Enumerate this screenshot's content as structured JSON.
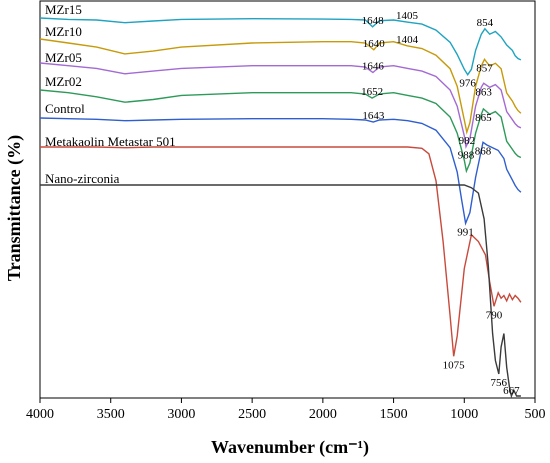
{
  "chart_data": {
    "type": "line",
    "xlabel": "Wavenumber (cm⁻¹)",
    "ylabel": "Transmittance (%)",
    "xlim": [
      4000,
      500
    ],
    "xreversed": true,
    "x_ticks": [
      "4000",
      "3500",
      "3000",
      "2500",
      "2000",
      "1500",
      "1000",
      "500"
    ],
    "y_ticks_shown": false,
    "grid": false,
    "legend": "none (series labelled inline above each trace)",
    "series": [
      {
        "name": "MZr15",
        "color": "#1fa3c0",
        "points": [
          [
            4000,
            0.0
          ],
          [
            3800,
            -1.0
          ],
          [
            3600,
            -1.5
          ],
          [
            3400,
            -3.5
          ],
          [
            3200,
            -2.2
          ],
          [
            3000,
            -1.0
          ],
          [
            2500,
            -0.5
          ],
          [
            2000,
            -0.8
          ],
          [
            1800,
            -1.0
          ],
          [
            1700,
            -1.5
          ],
          [
            1648,
            -6.5
          ],
          [
            1600,
            -2.0
          ],
          [
            1500,
            -1.5
          ],
          [
            1405,
            -3.0
          ],
          [
            1300,
            -4.5
          ],
          [
            1200,
            -9.0
          ],
          [
            1100,
            -18.0
          ],
          [
            1050,
            -27.0
          ],
          [
            1000,
            -38.0
          ],
          [
            976,
            -42.0
          ],
          [
            950,
            -38.0
          ],
          [
            920,
            -24.0
          ],
          [
            880,
            -12.0
          ],
          [
            854,
            -8.0
          ],
          [
            820,
            -12.0
          ],
          [
            780,
            -10.0
          ],
          [
            740,
            -14.0
          ],
          [
            700,
            -20.0
          ],
          [
            660,
            -24.0
          ],
          [
            640,
            -28.0
          ],
          [
            620,
            -30.0
          ],
          [
            600,
            -31.0
          ]
        ],
        "peaks": [
          {
            "label": "1648",
            "x": 1648
          },
          {
            "label": "1405",
            "x": 1405
          },
          {
            "label": "976",
            "x": 976
          },
          {
            "label": "854",
            "x": 854
          }
        ]
      },
      {
        "name": "MZr10",
        "color": "#c79a0a",
        "points": [
          [
            4000,
            0.0
          ],
          [
            3800,
            -3.0
          ],
          [
            3600,
            -6.0
          ],
          [
            3400,
            -11.0
          ],
          [
            3200,
            -9.0
          ],
          [
            3000,
            -6.0
          ],
          [
            2500,
            -3.0
          ],
          [
            2000,
            -2.0
          ],
          [
            1800,
            -2.0
          ],
          [
            1700,
            -3.0
          ],
          [
            1640,
            -8.0
          ],
          [
            1600,
            -3.0
          ],
          [
            1500,
            -2.0
          ],
          [
            1404,
            -5.0
          ],
          [
            1300,
            -7.0
          ],
          [
            1200,
            -12.0
          ],
          [
            1100,
            -22.0
          ],
          [
            1050,
            -35.0
          ],
          [
            1000,
            -60.0
          ],
          [
            982,
            -69.0
          ],
          [
            960,
            -62.0
          ],
          [
            920,
            -35.0
          ],
          [
            880,
            -20.0
          ],
          [
            857,
            -15.0
          ],
          [
            820,
            -20.0
          ],
          [
            780,
            -18.0
          ],
          [
            740,
            -22.0
          ],
          [
            700,
            -40.0
          ],
          [
            660,
            -46.0
          ],
          [
            640,
            -50.0
          ],
          [
            620,
            -53.0
          ],
          [
            600,
            -55.0
          ]
        ],
        "peaks": [
          {
            "label": "1640",
            "x": 1640
          },
          {
            "label": "1404",
            "x": 1404
          },
          {
            "label": "982",
            "x": 982
          },
          {
            "label": "857",
            "x": 857
          }
        ]
      },
      {
        "name": "MZr05",
        "color": "#a36ad4",
        "points": [
          [
            4000,
            0.0
          ],
          [
            3800,
            -2.0
          ],
          [
            3600,
            -4.0
          ],
          [
            3400,
            -8.0
          ],
          [
            3200,
            -6.0
          ],
          [
            3000,
            -4.0
          ],
          [
            2500,
            -2.0
          ],
          [
            2000,
            -2.0
          ],
          [
            1800,
            -2.0
          ],
          [
            1700,
            -3.0
          ],
          [
            1646,
            -7.0
          ],
          [
            1600,
            -3.0
          ],
          [
            1500,
            -2.0
          ],
          [
            1400,
            -4.0
          ],
          [
            1300,
            -6.0
          ],
          [
            1200,
            -10.0
          ],
          [
            1100,
            -20.0
          ],
          [
            1050,
            -32.0
          ],
          [
            1000,
            -54.0
          ],
          [
            988,
            -62.0
          ],
          [
            960,
            -56.0
          ],
          [
            920,
            -32.0
          ],
          [
            880,
            -18.0
          ],
          [
            863,
            -15.0
          ],
          [
            820,
            -18.0
          ],
          [
            780,
            -16.0
          ],
          [
            740,
            -20.0
          ],
          [
            700,
            -36.0
          ],
          [
            660,
            -42.0
          ],
          [
            640,
            -45.0
          ],
          [
            620,
            -47.0
          ],
          [
            600,
            -48.0
          ]
        ],
        "peaks": [
          {
            "label": "1646",
            "x": 1646
          },
          {
            "label": "988",
            "x": 988
          },
          {
            "label": "863",
            "x": 863
          }
        ]
      },
      {
        "name": "MZr02",
        "color": "#2e9a5a",
        "points": [
          [
            4000,
            0.0
          ],
          [
            3800,
            -2.0
          ],
          [
            3600,
            -5.0
          ],
          [
            3400,
            -9.0
          ],
          [
            3200,
            -7.0
          ],
          [
            3000,
            -4.0
          ],
          [
            2500,
            -2.0
          ],
          [
            2000,
            -2.0
          ],
          [
            1800,
            -2.0
          ],
          [
            1700,
            -3.0
          ],
          [
            1652,
            -6.0
          ],
          [
            1600,
            -3.0
          ],
          [
            1500,
            -2.0
          ],
          [
            1400,
            -4.0
          ],
          [
            1300,
            -6.0
          ],
          [
            1200,
            -10.0
          ],
          [
            1100,
            -20.0
          ],
          [
            1050,
            -32.0
          ],
          [
            1000,
            -52.0
          ],
          [
            985,
            -60.0
          ],
          [
            960,
            -54.0
          ],
          [
            920,
            -32.0
          ],
          [
            880,
            -18.0
          ],
          [
            865,
            -14.0
          ],
          [
            820,
            -18.0
          ],
          [
            780,
            -16.0
          ],
          [
            740,
            -20.0
          ],
          [
            700,
            -38.0
          ],
          [
            660,
            -44.0
          ],
          [
            640,
            -47.0
          ],
          [
            620,
            -49.0
          ],
          [
            600,
            -50.0
          ]
        ],
        "peaks": [
          {
            "label": "1652",
            "x": 1652
          },
          {
            "label": "865",
            "x": 865
          }
        ]
      },
      {
        "name": "Control",
        "color": "#2f5fcf",
        "points": [
          [
            4000,
            0.0
          ],
          [
            3800,
            -0.5
          ],
          [
            3600,
            -1.0
          ],
          [
            3400,
            -2.0
          ],
          [
            3200,
            -1.5
          ],
          [
            3000,
            -1.0
          ],
          [
            2500,
            -0.5
          ],
          [
            2000,
            -0.5
          ],
          [
            1800,
            -1.0
          ],
          [
            1700,
            -1.5
          ],
          [
            1643,
            -3.0
          ],
          [
            1600,
            -1.5
          ],
          [
            1500,
            -1.0
          ],
          [
            1400,
            -2.0
          ],
          [
            1300,
            -4.0
          ],
          [
            1200,
            -9.0
          ],
          [
            1100,
            -22.0
          ],
          [
            1050,
            -40.0
          ],
          [
            1020,
            -60.0
          ],
          [
            991,
            -78.0
          ],
          [
            960,
            -70.0
          ],
          [
            920,
            -44.0
          ],
          [
            880,
            -24.0
          ],
          [
            868,
            -18.0
          ],
          [
            840,
            -20.0
          ],
          [
            800,
            -22.0
          ],
          [
            760,
            -24.0
          ],
          [
            720,
            -30.0
          ],
          [
            700,
            -38.0
          ],
          [
            660,
            -46.0
          ],
          [
            640,
            -50.0
          ],
          [
            620,
            -53.0
          ],
          [
            600,
            -55.0
          ]
        ],
        "peaks": [
          {
            "label": "1643",
            "x": 1643
          },
          {
            "label": "991",
            "x": 991
          },
          {
            "label": "868",
            "x": 868
          }
        ]
      },
      {
        "name": "Metakaolin Metastar 501",
        "color": "#c84a3c",
        "points": [
          [
            4000,
            0.0
          ],
          [
            3800,
            0.0
          ],
          [
            3600,
            0.0
          ],
          [
            3400,
            -0.5
          ],
          [
            3200,
            0.0
          ],
          [
            3000,
            0.0
          ],
          [
            2500,
            0.0
          ],
          [
            2000,
            0.0
          ],
          [
            1800,
            0.0
          ],
          [
            1500,
            0.0
          ],
          [
            1400,
            0.0
          ],
          [
            1300,
            -1.0
          ],
          [
            1250,
            -5.0
          ],
          [
            1200,
            -25.0
          ],
          [
            1150,
            -70.0
          ],
          [
            1100,
            -125.0
          ],
          [
            1075,
            -155.0
          ],
          [
            1050,
            -140.0
          ],
          [
            1000,
            -90.0
          ],
          [
            950,
            -65.0
          ],
          [
            900,
            -70.0
          ],
          [
            850,
            -80.0
          ],
          [
            820,
            -100.0
          ],
          [
            800,
            -112.0
          ],
          [
            790,
            -118.0
          ],
          [
            760,
            -108.0
          ],
          [
            740,
            -112.0
          ],
          [
            720,
            -110.0
          ],
          [
            700,
            -114.0
          ],
          [
            680,
            -109.0
          ],
          [
            660,
            -113.0
          ],
          [
            640,
            -110.0
          ],
          [
            620,
            -112.0
          ],
          [
            600,
            -115.0
          ]
        ],
        "peaks": [
          {
            "label": "1075",
            "x": 1075
          },
          {
            "label": "790",
            "x": 790
          }
        ]
      },
      {
        "name": "Nano-zirconia",
        "color": "#3a3a3a",
        "points": [
          [
            4000,
            0.0
          ],
          [
            3800,
            0.0
          ],
          [
            3600,
            0.0
          ],
          [
            3400,
            0.0
          ],
          [
            3200,
            0.0
          ],
          [
            3000,
            0.0
          ],
          [
            2500,
            0.0
          ],
          [
            2000,
            0.0
          ],
          [
            1800,
            0.0
          ],
          [
            1500,
            0.0
          ],
          [
            1300,
            0.0
          ],
          [
            1200,
            0.0
          ],
          [
            1100,
            0.0
          ],
          [
            1000,
            0.0
          ],
          [
            950,
            -2.0
          ],
          [
            900,
            -6.0
          ],
          [
            860,
            -25.0
          ],
          [
            830,
            -60.0
          ],
          [
            800,
            -110.0
          ],
          [
            780,
            -130.0
          ],
          [
            756,
            -140.0
          ],
          [
            740,
            -120.0
          ],
          [
            720,
            -110.0
          ],
          [
            700,
            -135.0
          ],
          [
            680,
            -150.0
          ],
          [
            667,
            -158.0
          ],
          [
            650,
            -152.0
          ],
          [
            630,
            -165.0
          ],
          [
            610,
            -185.0
          ],
          [
            600,
            -200.0
          ]
        ],
        "peaks": [
          {
            "label": "756",
            "x": 756
          },
          {
            "label": "667",
            "x": 667
          }
        ]
      }
    ]
  }
}
